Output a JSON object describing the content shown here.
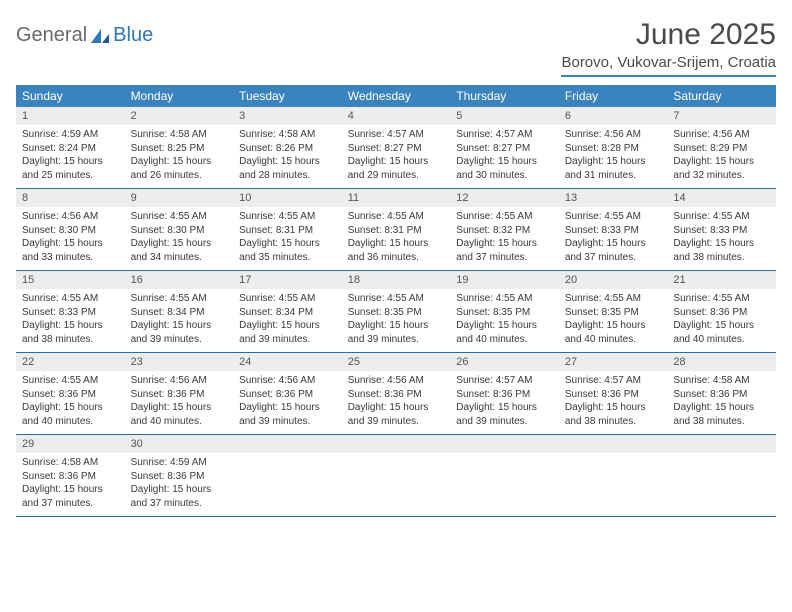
{
  "brand": {
    "word1": "General",
    "word2": "Blue"
  },
  "title": "June 2025",
  "location": "Borovo, Vukovar-Srijem, Croatia",
  "colors": {
    "header_bg": "#3b83bf",
    "header_text": "#ffffff",
    "daynum_bg": "#ededed",
    "rule": "#2f6a9e",
    "logo_gray": "#6a6a6a",
    "logo_blue": "#2f78b7"
  },
  "weekdays": [
    "Sunday",
    "Monday",
    "Tuesday",
    "Wednesday",
    "Thursday",
    "Friday",
    "Saturday"
  ],
  "weeks": [
    [
      {
        "n": "1",
        "sr": "Sunrise: 4:59 AM",
        "ss": "Sunset: 8:24 PM",
        "dl": "Daylight: 15 hours and 25 minutes."
      },
      {
        "n": "2",
        "sr": "Sunrise: 4:58 AM",
        "ss": "Sunset: 8:25 PM",
        "dl": "Daylight: 15 hours and 26 minutes."
      },
      {
        "n": "3",
        "sr": "Sunrise: 4:58 AM",
        "ss": "Sunset: 8:26 PM",
        "dl": "Daylight: 15 hours and 28 minutes."
      },
      {
        "n": "4",
        "sr": "Sunrise: 4:57 AM",
        "ss": "Sunset: 8:27 PM",
        "dl": "Daylight: 15 hours and 29 minutes."
      },
      {
        "n": "5",
        "sr": "Sunrise: 4:57 AM",
        "ss": "Sunset: 8:27 PM",
        "dl": "Daylight: 15 hours and 30 minutes."
      },
      {
        "n": "6",
        "sr": "Sunrise: 4:56 AM",
        "ss": "Sunset: 8:28 PM",
        "dl": "Daylight: 15 hours and 31 minutes."
      },
      {
        "n": "7",
        "sr": "Sunrise: 4:56 AM",
        "ss": "Sunset: 8:29 PM",
        "dl": "Daylight: 15 hours and 32 minutes."
      }
    ],
    [
      {
        "n": "8",
        "sr": "Sunrise: 4:56 AM",
        "ss": "Sunset: 8:30 PM",
        "dl": "Daylight: 15 hours and 33 minutes."
      },
      {
        "n": "9",
        "sr": "Sunrise: 4:55 AM",
        "ss": "Sunset: 8:30 PM",
        "dl": "Daylight: 15 hours and 34 minutes."
      },
      {
        "n": "10",
        "sr": "Sunrise: 4:55 AM",
        "ss": "Sunset: 8:31 PM",
        "dl": "Daylight: 15 hours and 35 minutes."
      },
      {
        "n": "11",
        "sr": "Sunrise: 4:55 AM",
        "ss": "Sunset: 8:31 PM",
        "dl": "Daylight: 15 hours and 36 minutes."
      },
      {
        "n": "12",
        "sr": "Sunrise: 4:55 AM",
        "ss": "Sunset: 8:32 PM",
        "dl": "Daylight: 15 hours and 37 minutes."
      },
      {
        "n": "13",
        "sr": "Sunrise: 4:55 AM",
        "ss": "Sunset: 8:33 PM",
        "dl": "Daylight: 15 hours and 37 minutes."
      },
      {
        "n": "14",
        "sr": "Sunrise: 4:55 AM",
        "ss": "Sunset: 8:33 PM",
        "dl": "Daylight: 15 hours and 38 minutes."
      }
    ],
    [
      {
        "n": "15",
        "sr": "Sunrise: 4:55 AM",
        "ss": "Sunset: 8:33 PM",
        "dl": "Daylight: 15 hours and 38 minutes."
      },
      {
        "n": "16",
        "sr": "Sunrise: 4:55 AM",
        "ss": "Sunset: 8:34 PM",
        "dl": "Daylight: 15 hours and 39 minutes."
      },
      {
        "n": "17",
        "sr": "Sunrise: 4:55 AM",
        "ss": "Sunset: 8:34 PM",
        "dl": "Daylight: 15 hours and 39 minutes."
      },
      {
        "n": "18",
        "sr": "Sunrise: 4:55 AM",
        "ss": "Sunset: 8:35 PM",
        "dl": "Daylight: 15 hours and 39 minutes."
      },
      {
        "n": "19",
        "sr": "Sunrise: 4:55 AM",
        "ss": "Sunset: 8:35 PM",
        "dl": "Daylight: 15 hours and 40 minutes."
      },
      {
        "n": "20",
        "sr": "Sunrise: 4:55 AM",
        "ss": "Sunset: 8:35 PM",
        "dl": "Daylight: 15 hours and 40 minutes."
      },
      {
        "n": "21",
        "sr": "Sunrise: 4:55 AM",
        "ss": "Sunset: 8:36 PM",
        "dl": "Daylight: 15 hours and 40 minutes."
      }
    ],
    [
      {
        "n": "22",
        "sr": "Sunrise: 4:55 AM",
        "ss": "Sunset: 8:36 PM",
        "dl": "Daylight: 15 hours and 40 minutes."
      },
      {
        "n": "23",
        "sr": "Sunrise: 4:56 AM",
        "ss": "Sunset: 8:36 PM",
        "dl": "Daylight: 15 hours and 40 minutes."
      },
      {
        "n": "24",
        "sr": "Sunrise: 4:56 AM",
        "ss": "Sunset: 8:36 PM",
        "dl": "Daylight: 15 hours and 39 minutes."
      },
      {
        "n": "25",
        "sr": "Sunrise: 4:56 AM",
        "ss": "Sunset: 8:36 PM",
        "dl": "Daylight: 15 hours and 39 minutes."
      },
      {
        "n": "26",
        "sr": "Sunrise: 4:57 AM",
        "ss": "Sunset: 8:36 PM",
        "dl": "Daylight: 15 hours and 39 minutes."
      },
      {
        "n": "27",
        "sr": "Sunrise: 4:57 AM",
        "ss": "Sunset: 8:36 PM",
        "dl": "Daylight: 15 hours and 38 minutes."
      },
      {
        "n": "28",
        "sr": "Sunrise: 4:58 AM",
        "ss": "Sunset: 8:36 PM",
        "dl": "Daylight: 15 hours and 38 minutes."
      }
    ],
    [
      {
        "n": "29",
        "sr": "Sunrise: 4:58 AM",
        "ss": "Sunset: 8:36 PM",
        "dl": "Daylight: 15 hours and 37 minutes."
      },
      {
        "n": "30",
        "sr": "Sunrise: 4:59 AM",
        "ss": "Sunset: 8:36 PM",
        "dl": "Daylight: 15 hours and 37 minutes."
      },
      null,
      null,
      null,
      null,
      null
    ]
  ]
}
